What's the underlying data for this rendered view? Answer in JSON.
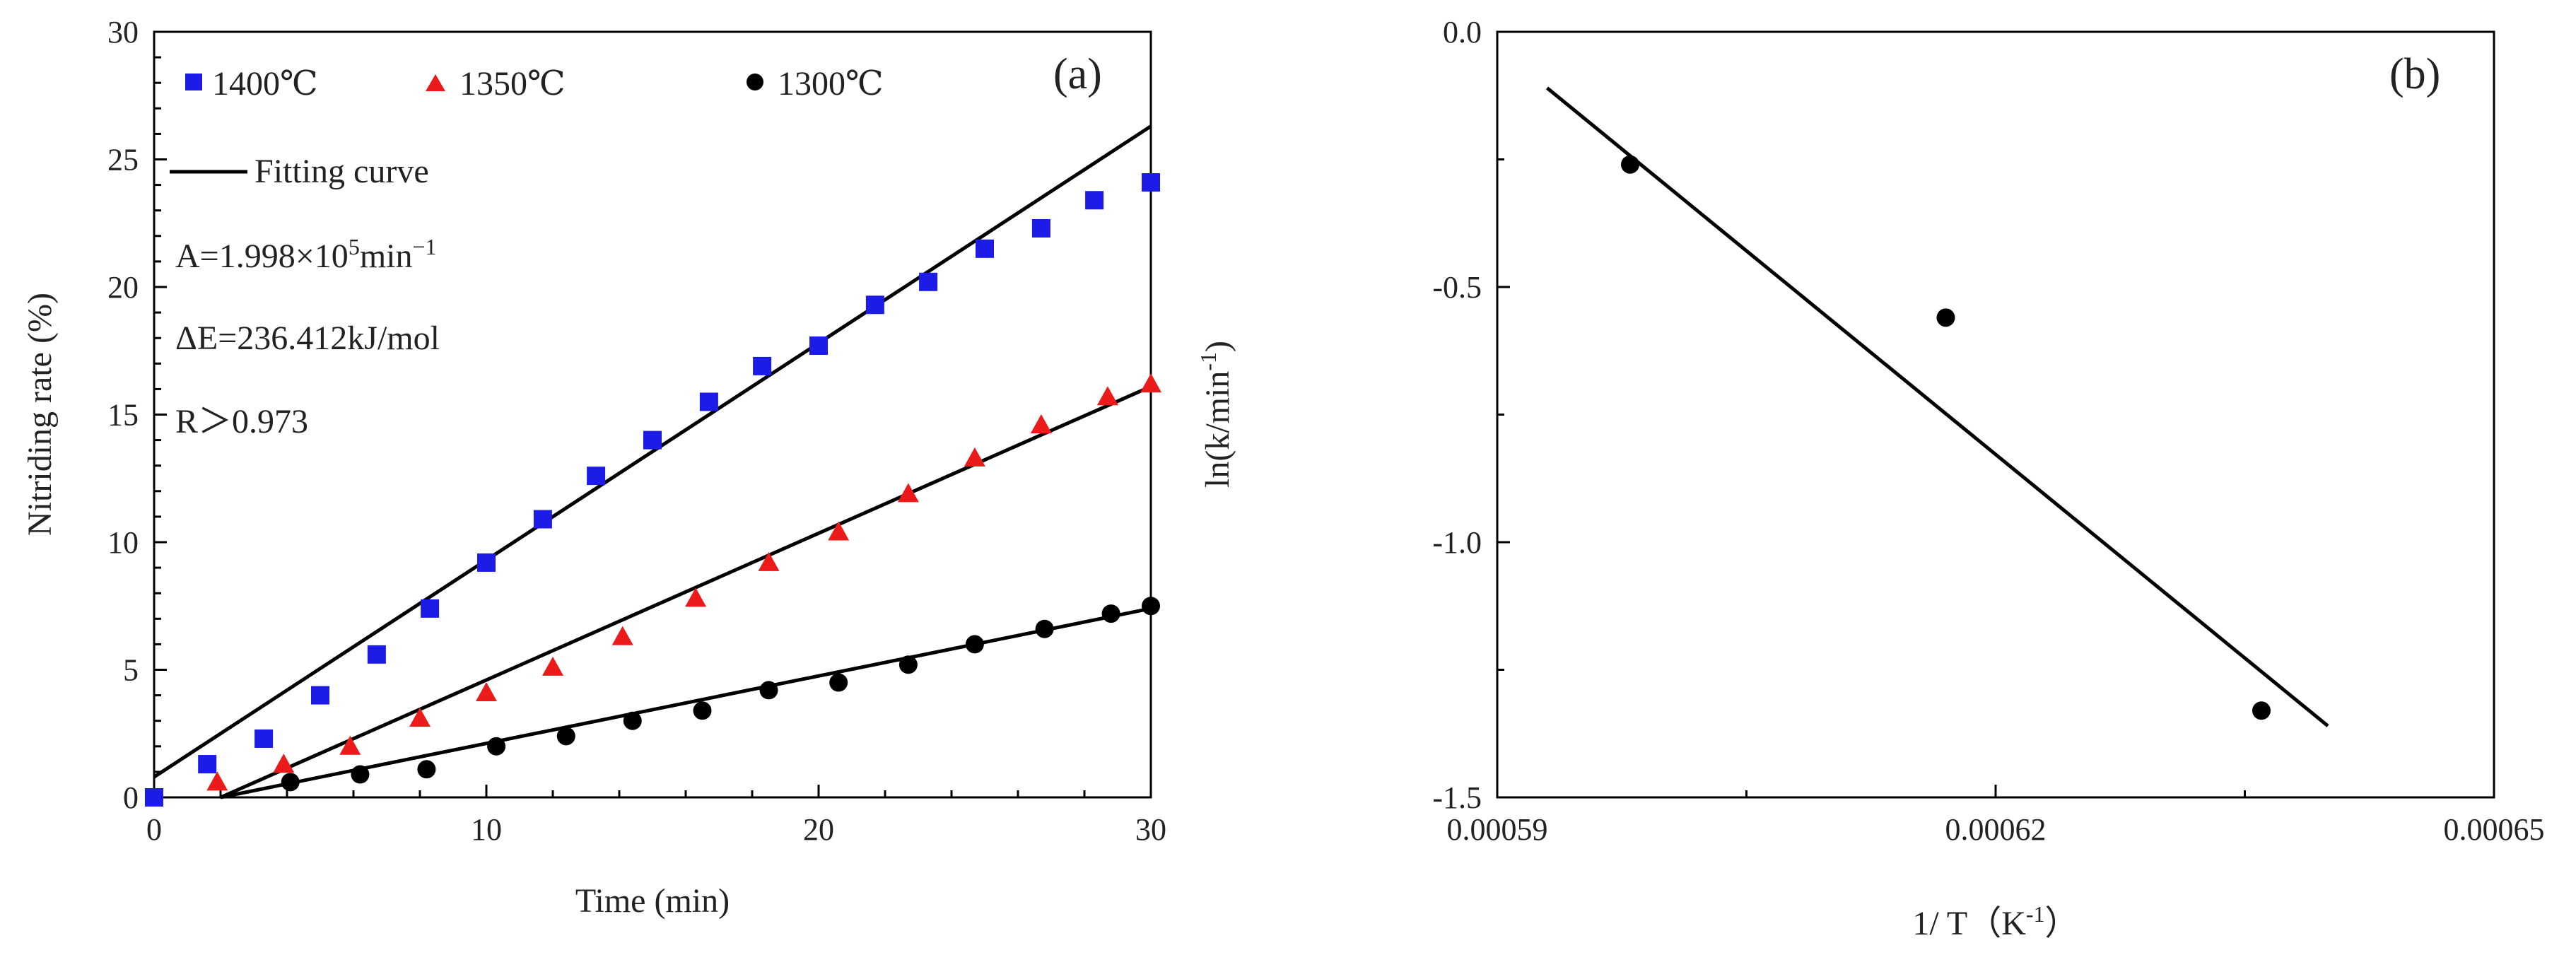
{
  "chart_data": [
    {
      "type": "scatter",
      "panel_label": "(a)",
      "title": "",
      "xlabel": "Time (min)",
      "ylabel": "Nitriding rate (%)",
      "xlim": [
        0,
        30
      ],
      "ylim": [
        0,
        30
      ],
      "xticks": [
        0,
        10,
        20,
        30
      ],
      "yticks": [
        0,
        5,
        10,
        15,
        20,
        25,
        30
      ],
      "grid": false,
      "legend_position": "top-left",
      "series": [
        {
          "name": "1400℃",
          "marker": "square",
          "color": "#1c1ce6",
          "x": [
            0,
            1.6,
            3.3,
            5.0,
            6.7,
            8.3,
            10.0,
            11.7,
            13.3,
            15.0,
            16.7,
            18.3,
            20.0,
            21.7,
            23.3,
            25.0,
            26.7,
            28.3,
            30.0
          ],
          "y": [
            0,
            1.3,
            2.3,
            4.0,
            5.6,
            7.4,
            9.2,
            10.9,
            12.6,
            14.0,
            15.5,
            16.9,
            17.7,
            19.3,
            20.2,
            21.5,
            22.3,
            23.4,
            24.1
          ]
        },
        {
          "name": "1350℃",
          "marker": "triangle",
          "color": "#ec1b1b",
          "x": [
            1.9,
            3.9,
            5.9,
            8.0,
            10.0,
            12.0,
            14.1,
            16.3,
            18.5,
            20.6,
            22.7,
            24.7,
            26.7,
            28.7,
            30.0
          ],
          "y": [
            0.6,
            1.3,
            2.0,
            3.1,
            4.1,
            5.1,
            6.3,
            7.8,
            9.2,
            10.4,
            11.9,
            13.3,
            14.6,
            15.7,
            16.2
          ]
        },
        {
          "name": "1300℃",
          "marker": "circle",
          "color": "#000000",
          "x": [
            4.1,
            6.2,
            8.2,
            10.3,
            12.4,
            14.4,
            16.5,
            18.5,
            20.6,
            22.7,
            24.7,
            26.8,
            28.8,
            30.0
          ],
          "y": [
            0.6,
            0.9,
            1.1,
            2.0,
            2.4,
            3.0,
            3.4,
            4.2,
            4.5,
            5.2,
            6.0,
            6.6,
            7.2,
            7.5
          ]
        }
      ],
      "fits": [
        {
          "name": "1400℃ fit",
          "x": [
            0,
            30
          ],
          "y": [
            0.8,
            26.3
          ]
        },
        {
          "name": "1350℃ fit",
          "x": [
            2.0,
            30
          ],
          "y": [
            0.0,
            16.1
          ]
        },
        {
          "name": "1300℃ fit",
          "x": [
            2.0,
            30
          ],
          "y": [
            0.0,
            7.4
          ]
        }
      ],
      "fit_legend_label": "Fitting curve",
      "annotations": {
        "A_prefix": "A=1.998×10",
        "A_exponent": "5",
        "A_suffix": "min",
        "A_unit_exponent": "−1",
        "delta_E": "ΔE=236.412kJ/mol",
        "R": "R＞0.973"
      }
    },
    {
      "type": "scatter",
      "panel_label": "(b)",
      "title": "",
      "xlabel_prefix": "1/ T（K",
      "xlabel_exponent": "-1",
      "xlabel_suffix": "）",
      "ylabel_prefix": "ln(k/min",
      "ylabel_exponent": "-1",
      "ylabel_suffix": ")",
      "xlim": [
        0.00059,
        0.00065
      ],
      "ylim": [
        -1.5,
        0.0
      ],
      "xticks": [
        0.00059,
        0.00062,
        0.00065
      ],
      "xtick_labels": [
        "0.00059",
        "0.00062",
        "0.00065"
      ],
      "yticks": [
        -1.5,
        -1.0,
        -0.5,
        0.0
      ],
      "ytick_labels": [
        "-1.5",
        "-1.0",
        "-0.5",
        "0.0"
      ],
      "grid": false,
      "points": {
        "name": "ln k",
        "color": "#000000",
        "x": [
          0.000598,
          0.000617,
          0.000636
        ],
        "y": [
          -0.26,
          -0.56,
          -1.33
        ]
      },
      "fit": {
        "name": "linear fit",
        "x": [
          0.000593,
          0.00064
        ],
        "y": [
          -0.11,
          -1.36
        ]
      }
    }
  ]
}
